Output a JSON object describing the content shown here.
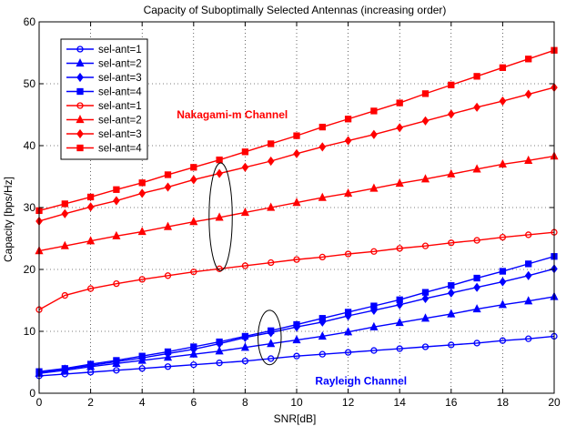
{
  "chart_data": {
    "type": "line",
    "title": "Capacity of Suboptimally Selected Antennas (increasing order)",
    "xlabel": "SNR[dB]",
    "ylabel": "Capacity [bps/Hz]",
    "xlim": [
      0,
      20
    ],
    "ylim": [
      0,
      60
    ],
    "xticks": [
      0,
      2,
      4,
      6,
      8,
      10,
      12,
      14,
      16,
      18,
      20
    ],
    "yticks": [
      0,
      10,
      20,
      30,
      40,
      50,
      60
    ],
    "grid": true,
    "legend_position": "top-left",
    "x": [
      0,
      1,
      2,
      3,
      4,
      5,
      6,
      7,
      8,
      9,
      10,
      11,
      12,
      13,
      14,
      15,
      16,
      17,
      18,
      19,
      20
    ],
    "series": [
      {
        "name": "sel-ant=1",
        "color": "#0000ff",
        "marker": "circle",
        "values": [
          2.8,
          3.1,
          3.4,
          3.7,
          4.0,
          4.3,
          4.6,
          4.9,
          5.2,
          5.6,
          6.0,
          6.3,
          6.6,
          6.9,
          7.2,
          7.5,
          7.8,
          8.1,
          8.5,
          8.8,
          9.2
        ]
      },
      {
        "name": "sel-ant=2",
        "color": "#0000ff",
        "marker": "triangle",
        "values": [
          3.2,
          3.7,
          4.3,
          4.8,
          5.3,
          5.8,
          6.3,
          6.8,
          7.4,
          8.0,
          8.6,
          9.2,
          9.9,
          10.7,
          11.4,
          12.1,
          12.8,
          13.6,
          14.3,
          14.9,
          15.6
        ]
      },
      {
        "name": "sel-ant=3",
        "color": "#0000ff",
        "marker": "diamond",
        "values": [
          3.4,
          3.9,
          4.5,
          5.1,
          5.7,
          6.4,
          7.1,
          8.0,
          9.0,
          9.8,
          10.7,
          11.5,
          12.5,
          13.4,
          14.3,
          15.3,
          16.2,
          17.1,
          18.0,
          19.0,
          20.1
        ]
      },
      {
        "name": "sel-ant=4",
        "color": "#0000ff",
        "marker": "square",
        "values": [
          3.5,
          4.0,
          4.7,
          5.3,
          6.0,
          6.7,
          7.5,
          8.3,
          9.2,
          10.1,
          11.1,
          12.1,
          13.1,
          14.1,
          15.1,
          16.3,
          17.4,
          18.6,
          19.7,
          20.9,
          22.1
        ]
      },
      {
        "name": "sel-ant=1",
        "color": "#ff0000",
        "marker": "circle",
        "values": [
          13.5,
          15.8,
          16.9,
          17.7,
          18.4,
          19.0,
          19.6,
          20.1,
          20.6,
          21.1,
          21.6,
          22.0,
          22.5,
          22.9,
          23.4,
          23.8,
          24.3,
          24.7,
          25.2,
          25.6,
          26.0
        ]
      },
      {
        "name": "sel-ant=2",
        "color": "#ff0000",
        "marker": "triangle",
        "values": [
          23.0,
          23.8,
          24.6,
          25.4,
          26.1,
          26.9,
          27.7,
          28.4,
          29.2,
          30.0,
          30.8,
          31.6,
          32.3,
          33.1,
          33.9,
          34.6,
          35.4,
          36.2,
          37.0,
          37.6,
          38.3
        ]
      },
      {
        "name": "sel-ant=3",
        "color": "#ff0000",
        "marker": "diamond",
        "values": [
          27.8,
          29.0,
          30.1,
          31.1,
          32.3,
          33.3,
          34.5,
          35.5,
          36.5,
          37.5,
          38.7,
          39.8,
          40.8,
          41.8,
          42.9,
          44.0,
          45.1,
          46.2,
          47.2,
          48.3,
          49.4
        ]
      },
      {
        "name": "sel-ant=4",
        "color": "#ff0000",
        "marker": "square",
        "values": [
          29.5,
          30.6,
          31.7,
          32.9,
          34.0,
          35.3,
          36.5,
          37.7,
          39.0,
          40.3,
          41.6,
          43.0,
          44.3,
          45.6,
          46.9,
          48.4,
          49.8,
          51.2,
          52.6,
          54.0,
          55.4
        ]
      }
    ],
    "annotations": [
      {
        "text": "Nakagami-m Channel",
        "color": "#ff0000",
        "x": 7.5,
        "y": 45
      },
      {
        "text": "Rayleigh Channel",
        "color": "#0000ff",
        "x": 12.5,
        "y": 2
      }
    ],
    "ellipses": [
      {
        "cx": 7.05,
        "cy": 28.5,
        "rx": 0.45,
        "ry": 8.7
      },
      {
        "cx": 8.95,
        "cy": 9.0,
        "rx": 0.45,
        "ry": 4.4
      }
    ]
  }
}
